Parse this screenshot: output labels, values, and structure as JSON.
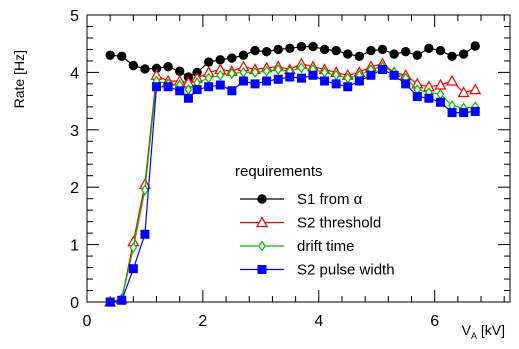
{
  "chart_data": {
    "type": "line",
    "xlabel_main": "V",
    "xlabel_sub": "A",
    "xlabel_unit": " [kV]",
    "ylabel": "Rate [Hz]",
    "xlim": [
      0,
      7.3
    ],
    "ylim": [
      0,
      5
    ],
    "xticks": [
      0,
      2,
      4,
      6
    ],
    "yticks": [
      0,
      1,
      2,
      3,
      4,
      5
    ],
    "legend_title": "requirements",
    "series": [
      {
        "name": "S1 from α",
        "color": "#000000",
        "marker": "filled-circle",
        "x": [
          0.4,
          0.6,
          0.8,
          1.0,
          1.2,
          1.4,
          1.6,
          1.75,
          1.9,
          2.1,
          2.3,
          2.5,
          2.7,
          2.9,
          3.1,
          3.3,
          3.5,
          3.7,
          3.9,
          4.1,
          4.3,
          4.5,
          4.7,
          4.9,
          5.1,
          5.3,
          5.5,
          5.7,
          5.9,
          6.1,
          6.3,
          6.5,
          6.7
        ],
        "y": [
          4.3,
          4.28,
          4.12,
          4.06,
          4.07,
          4.1,
          4.02,
          3.92,
          4.0,
          4.18,
          4.22,
          4.25,
          4.3,
          4.38,
          4.36,
          4.4,
          4.42,
          4.45,
          4.45,
          4.4,
          4.38,
          4.32,
          4.28,
          4.38,
          4.4,
          4.32,
          4.36,
          4.3,
          4.42,
          4.38,
          4.28,
          4.32,
          4.46
        ]
      },
      {
        "name": "S2 threshold",
        "color": "#ff0000",
        "marker": "open-triangle",
        "x": [
          0.4,
          0.6,
          0.8,
          1.0,
          1.2,
          1.4,
          1.6,
          1.75,
          1.9,
          2.1,
          2.3,
          2.5,
          2.7,
          2.9,
          3.1,
          3.3,
          3.5,
          3.7,
          3.9,
          4.1,
          4.3,
          4.5,
          4.7,
          4.9,
          5.1,
          5.3,
          5.5,
          5.7,
          5.9,
          6.1,
          6.3,
          6.5,
          6.7
        ],
        "y": [
          0.0,
          0.05,
          1.05,
          2.05,
          3.95,
          3.85,
          3.85,
          3.82,
          3.9,
          4.0,
          4.05,
          4.02,
          4.1,
          4.05,
          4.08,
          4.1,
          4.05,
          4.15,
          4.1,
          4.05,
          4.0,
          3.95,
          4.0,
          4.1,
          4.15,
          4.0,
          3.95,
          3.8,
          3.75,
          3.78,
          3.85,
          3.65,
          3.7
        ]
      },
      {
        "name": "drift time",
        "color": "#00c000",
        "marker": "open-diamond",
        "x": [
          0.4,
          0.6,
          0.8,
          1.0,
          1.2,
          1.4,
          1.6,
          1.75,
          1.9,
          2.1,
          2.3,
          2.5,
          2.7,
          2.9,
          3.1,
          3.3,
          3.5,
          3.7,
          3.9,
          4.1,
          4.3,
          4.5,
          4.7,
          4.9,
          5.1,
          5.3,
          5.5,
          5.7,
          5.9,
          6.1,
          6.3,
          6.5,
          6.7
        ],
        "y": [
          0.0,
          0.05,
          0.95,
          1.95,
          3.85,
          3.8,
          3.78,
          3.7,
          3.82,
          3.9,
          3.95,
          3.98,
          4.0,
          4.0,
          4.02,
          4.05,
          4.02,
          4.08,
          4.05,
          4.0,
          3.95,
          3.9,
          3.95,
          4.05,
          4.1,
          4.0,
          3.9,
          3.7,
          3.65,
          3.62,
          3.42,
          3.38,
          3.4
        ]
      },
      {
        "name": "S2 pulse width",
        "color": "#0000ff",
        "marker": "filled-square",
        "x": [
          0.4,
          0.6,
          0.8,
          1.0,
          1.2,
          1.4,
          1.6,
          1.75,
          1.9,
          2.1,
          2.3,
          2.5,
          2.7,
          2.9,
          3.1,
          3.3,
          3.5,
          3.7,
          3.9,
          4.1,
          4.3,
          4.5,
          4.7,
          4.9,
          5.1,
          5.3,
          5.5,
          5.7,
          5.9,
          6.1,
          6.3,
          6.5,
          6.7
        ],
        "y": [
          0.0,
          0.03,
          0.58,
          1.18,
          3.75,
          3.75,
          3.68,
          3.55,
          3.7,
          3.75,
          3.78,
          3.68,
          3.85,
          3.8,
          3.85,
          3.88,
          3.92,
          3.9,
          3.95,
          3.85,
          3.8,
          3.75,
          3.85,
          3.95,
          4.05,
          3.95,
          3.8,
          3.58,
          3.55,
          3.48,
          3.3,
          3.3,
          3.32
        ]
      }
    ]
  }
}
